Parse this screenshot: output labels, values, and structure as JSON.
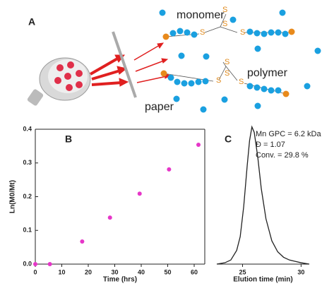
{
  "panel_a": {
    "label": "A",
    "monomer": "monomer",
    "polymer": "polymer",
    "paper": "paper",
    "sulfur": "S"
  },
  "chart_data": [
    {
      "type": "scatter",
      "panel": "B",
      "x_label": "Time (hrs)",
      "y_label": "Ln(M0/Mt)",
      "x": [
        0,
        5.5,
        17.7,
        28.2,
        39.4,
        50.5,
        61.6
      ],
      "values": [
        0,
        0,
        0.067,
        0.138,
        0.209,
        0.281,
        0.354
      ],
      "color": "#e636c8",
      "xlim": [
        0,
        64
      ],
      "ylim": [
        0,
        0.4
      ],
      "xticks": [
        0,
        10,
        20,
        30,
        40,
        50,
        60
      ],
      "yticks": [
        {
          "value": 0,
          "label": "0.0"
        },
        0.1,
        0.2,
        0.3,
        0.4
      ]
    },
    {
      "type": "line",
      "panel": "C",
      "x_label": "Elution time (min)",
      "annotations": [
        "Mn GPC = 6.2 kDa",
        "Đ = 1.07",
        "Conv. = 29.8 %"
      ],
      "x": [
        22.8,
        23.5,
        24,
        24.5,
        24.8,
        25.1,
        25.4,
        25.6,
        25.8,
        26.0,
        26.3,
        26.6,
        27.0,
        27.5,
        28,
        28.5,
        29,
        29.5,
        30,
        30.7
      ],
      "values": [
        0,
        0.01,
        0.03,
        0.1,
        0.2,
        0.42,
        0.72,
        0.9,
        1.0,
        0.96,
        0.78,
        0.55,
        0.33,
        0.17,
        0.09,
        0.05,
        0.03,
        0.02,
        0.01,
        0
      ],
      "color": "#222222",
      "xlim": [
        22.8,
        30.7
      ],
      "ylim": [
        0,
        1.05
      ],
      "xticks": [
        25,
        30
      ]
    }
  ]
}
